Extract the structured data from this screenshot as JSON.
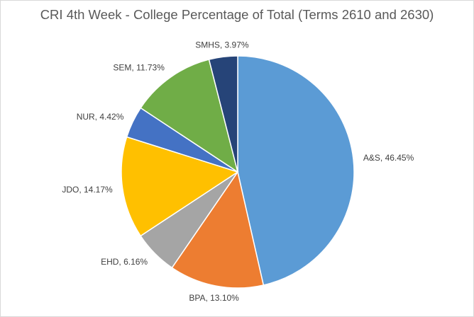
{
  "chart_data": {
    "type": "pie",
    "title": "CRI 4th Week - College Percentage of Total (Terms 2610 and 2630)",
    "legend": "none",
    "start_angle_deg": 0,
    "direction": "clockwise",
    "slices": [
      {
        "label": "A&S",
        "value": 46.45,
        "display": "A&S, 46.45%",
        "color": "#5b9bd5"
      },
      {
        "label": "BPA",
        "value": 13.1,
        "display": "BPA, 13.10%",
        "color": "#ed7d31"
      },
      {
        "label": "EHD",
        "value": 6.16,
        "display": "EHD, 6.16%",
        "color": "#a5a5a5"
      },
      {
        "label": "JDO",
        "value": 14.17,
        "display": "JDO, 14.17%",
        "color": "#ffc000"
      },
      {
        "label": "NUR",
        "value": 4.42,
        "display": "NUR, 4.42%",
        "color": "#4472c4"
      },
      {
        "label": "SEM",
        "value": 11.73,
        "display": "SEM, 11.73%",
        "color": "#70ad47"
      },
      {
        "label": "SMHS",
        "value": 3.97,
        "display": "SMHS, 3.97%",
        "color": "#264478"
      }
    ]
  }
}
